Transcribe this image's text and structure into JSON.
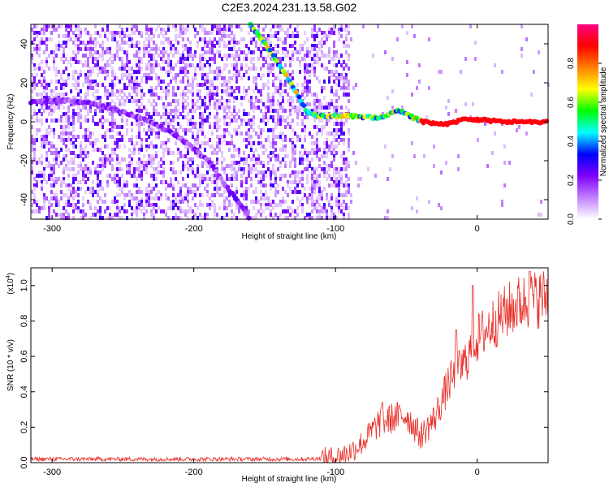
{
  "figure": {
    "title": "C2E3.2024.231.13.58.G02"
  },
  "chart_data": [
    {
      "type": "heatmap",
      "xlabel": "Height of straight line (km)",
      "ylabel": "Frequency (Hz)",
      "xlim": [
        -315,
        50
      ],
      "ylim": [
        -50,
        50
      ],
      "xticks": [
        -300,
        -200,
        -100,
        0
      ],
      "xtick_labels": [
        "-300",
        "-200",
        "-100",
        "0"
      ],
      "yticks": [
        -40,
        -20,
        0,
        20,
        40
      ],
      "ytick_labels": [
        "-40",
        "-20",
        "0",
        "20",
        "40"
      ],
      "grid": false,
      "background_noise_until_km": -90,
      "tracks": [
        {
          "points": [
            [
              -315,
              10
            ],
            [
              -290,
              11
            ],
            [
              -270,
              9
            ],
            [
              -250,
              5
            ],
            [
              -230,
              0
            ],
            [
              -210,
              -8
            ],
            [
              -190,
              -20
            ],
            [
              -175,
              -35
            ],
            [
              -160,
              -50
            ]
          ],
          "amplitude": 0.3
        },
        {
          "points": [
            [
              -160,
              50
            ],
            [
              -145,
              35
            ],
            [
              -130,
              18
            ],
            [
              -120,
              5
            ],
            [
              -110,
              3
            ],
            [
              -90,
              3
            ],
            [
              -70,
              2
            ],
            [
              -55,
              6
            ],
            [
              -45,
              2
            ],
            [
              -38,
              0
            ],
            [
              -30,
              -1
            ],
            [
              -20,
              -1
            ],
            [
              -10,
              1
            ],
            [
              0,
              1
            ],
            [
              20,
              0
            ],
            [
              50,
              0
            ]
          ],
          "amplitude": 0.9
        }
      ],
      "colorbar": {
        "label": "Normalized spectral amplitude",
        "range": [
          0,
          1
        ],
        "ticks": [
          0.0,
          0.2,
          0.4,
          0.6,
          0.8
        ],
        "tick_labels": [
          "0.0",
          "0.2",
          "0.4",
          "0.6",
          "0.8"
        ],
        "colors": [
          "#ffffff",
          "#c080ff",
          "#7f00ff",
          "#0000ff",
          "#00ffff",
          "#00ff00",
          "#ffff00",
          "#ff8000",
          "#ff0000",
          "#ff0080"
        ]
      }
    },
    {
      "type": "line",
      "xlabel": "Height of straight line (km)",
      "ylabel": "SNR (10 * v/v)",
      "scale_label": "(x10",
      "scale_exponent": "4",
      "scale_close": ")",
      "xlim": [
        -315,
        50
      ],
      "ylim": [
        0,
        1.1
      ],
      "xticks": [
        -300,
        -200,
        -100,
        0
      ],
      "xtick_labels": [
        "-300",
        "-200",
        "-100",
        "0"
      ],
      "yticks": [
        0.0,
        0.2,
        0.4,
        0.6,
        0.8,
        1.0
      ],
      "ytick_labels": [
        "0.0",
        "0.2",
        "0.4",
        "0.6",
        "0.8",
        "1.0"
      ],
      "grid": false,
      "line_color": "#e8302a",
      "envelope": {
        "x": [
          -315,
          -120,
          -100,
          -90,
          -80,
          -70,
          -60,
          -50,
          -40,
          -30,
          -25,
          -20,
          -10,
          0,
          10,
          20,
          30,
          40,
          50
        ],
        "y": [
          0.02,
          0.02,
          0.03,
          0.06,
          0.12,
          0.22,
          0.25,
          0.27,
          0.15,
          0.25,
          0.35,
          0.45,
          0.55,
          0.7,
          0.78,
          0.85,
          0.9,
          0.92,
          0.94
        ]
      },
      "peaks": [
        [
          -3,
          1.0
        ],
        [
          -15,
          0.75
        ],
        [
          37,
          1.08
        ],
        [
          -67,
          0.34
        ]
      ]
    }
  ]
}
